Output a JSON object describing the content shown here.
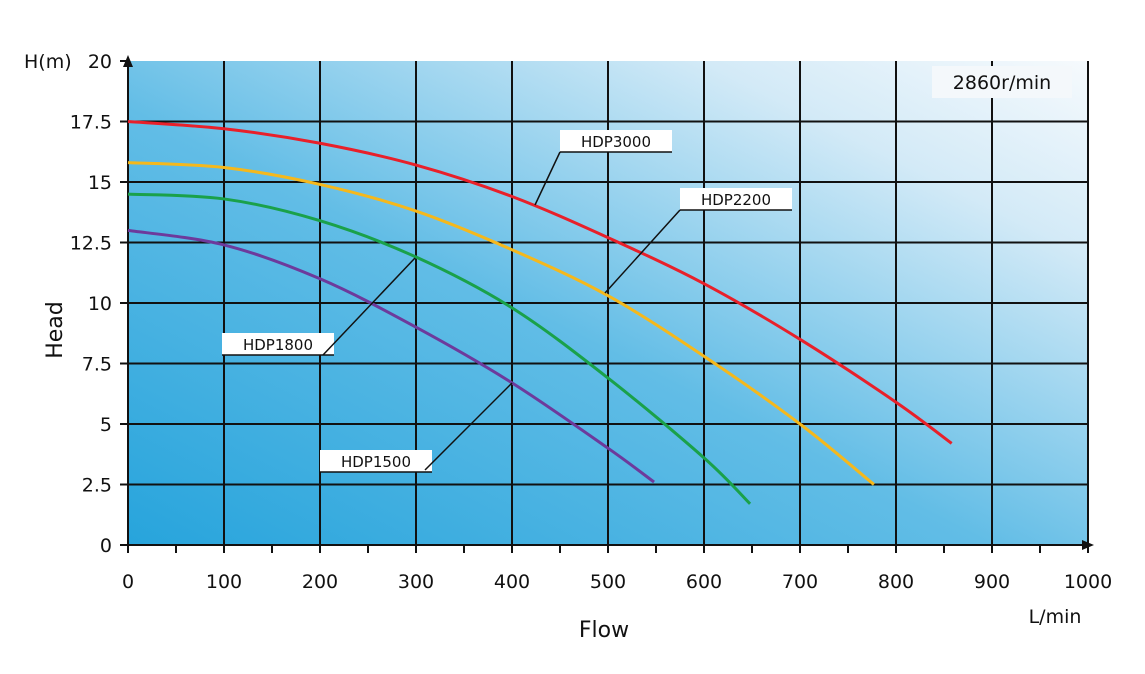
{
  "chart_data": {
    "type": "line",
    "title": "",
    "annotation": "2860r/min",
    "xlabel": "Flow",
    "xunit": "L/min",
    "ylabel": "Head",
    "yunit": "H(m)",
    "xlim": [
      0,
      1000
    ],
    "ylim": [
      0,
      20
    ],
    "xticks": [
      "0",
      "100",
      "200",
      "300",
      "400",
      "500",
      "600",
      "700",
      "800",
      "900",
      "1000"
    ],
    "yticks": [
      "0",
      "2.5",
      "5",
      "7.5",
      "10",
      "12.5",
      "15",
      "17.5",
      "20"
    ],
    "grid": true,
    "background": "blue-to-white gradient",
    "series": [
      {
        "name": "HDP3000",
        "color": "#e8202a",
        "x": [
          0,
          100,
          200,
          300,
          400,
          500,
          600,
          700,
          800,
          858
        ],
        "y": [
          17.5,
          17.2,
          16.6,
          15.7,
          14.4,
          12.7,
          10.8,
          8.5,
          5.9,
          4.2
        ]
      },
      {
        "name": "HDP2200",
        "color": "#f5b81c",
        "x": [
          0,
          100,
          200,
          300,
          400,
          500,
          600,
          700,
          777
        ],
        "y": [
          15.8,
          15.6,
          14.9,
          13.8,
          12.2,
          10.3,
          7.8,
          5.0,
          2.5
        ]
      },
      {
        "name": "HDP1800",
        "color": "#1aa14a",
        "x": [
          0,
          100,
          200,
          300,
          400,
          500,
          600,
          648
        ],
        "y": [
          14.5,
          14.3,
          13.4,
          11.9,
          9.8,
          6.9,
          3.6,
          1.7
        ]
      },
      {
        "name": "HDP1500",
        "color": "#6d3a9c",
        "x": [
          0,
          100,
          200,
          300,
          400,
          500,
          548
        ],
        "y": [
          13.0,
          12.4,
          11.0,
          9.0,
          6.7,
          4.0,
          2.6
        ]
      }
    ]
  }
}
